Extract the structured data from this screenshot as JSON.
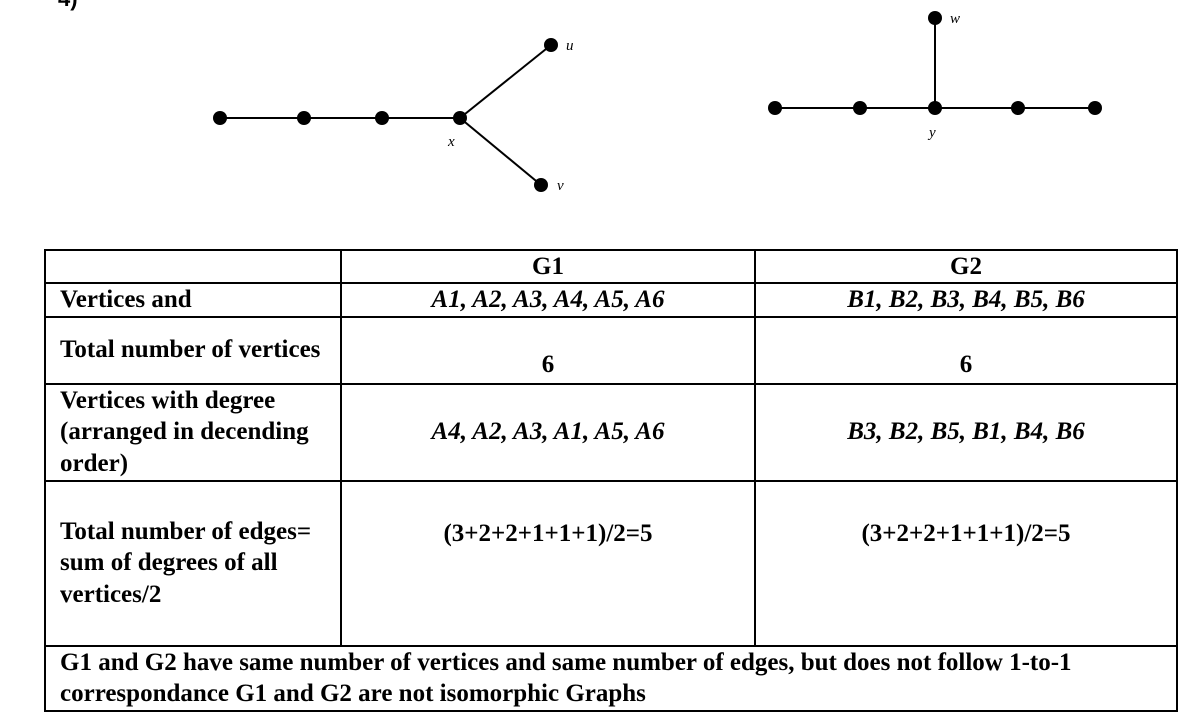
{
  "question_number": "4)",
  "graphs": {
    "g1_labels": {
      "u": "u",
      "v": "v",
      "x": "x"
    },
    "g2_labels": {
      "w": "w",
      "y": "y"
    }
  },
  "table": {
    "header": {
      "blank": "",
      "g1": "G1",
      "g2": "G2"
    },
    "rows": {
      "vertices": {
        "label": "Vertices and",
        "g1": "A1, A2, A3, A4, A5, A6",
        "g2": "B1, B2, B3, B4, B5, B6"
      },
      "total_vertices": {
        "label": "Total number of vertices",
        "g1": "6",
        "g2": "6"
      },
      "degree_order": {
        "label": "Vertices with degree (arranged in decending order)",
        "g1": "A4, A2, A3, A1, A5, A6",
        "g2": "B3, B2, B5, B1, B4, B6"
      },
      "total_edges": {
        "label": "Total number of edges= sum of degrees of all vertices/2",
        "g1": "(3+2+2+1+1+1)/2=5",
        "g2": "(3+2+2+1+1+1)/2=5"
      }
    },
    "conclusion": "G1 and G2 have same number of vertices and same number of edges, but does not follow 1-to-1 correspondance  G1 and G2 are not isomorphic Graphs"
  }
}
